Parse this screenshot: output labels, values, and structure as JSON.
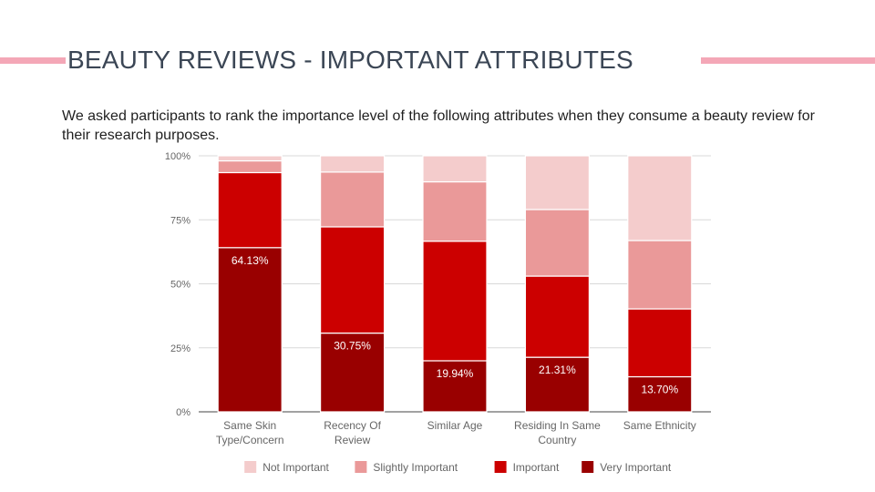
{
  "slide": {
    "title": "BEAUTY REVIEWS - IMPORTANT ATTRIBUTES",
    "subtitle": "We asked participants to rank the importance level of the following attributes when they consume a beauty review for their research purposes."
  },
  "chart_data": {
    "type": "bar",
    "stacked": true,
    "categories": [
      [
        "Same Skin",
        "Type/Concern"
      ],
      [
        "Recency Of",
        "Review"
      ],
      [
        "Similar Age"
      ],
      [
        "Residing In Same",
        "Country"
      ],
      [
        "Same Ethnicity"
      ]
    ],
    "series": [
      {
        "name": "Very Important",
        "color": "#990000",
        "values": [
          64.13,
          30.75,
          19.94,
          21.31,
          13.7
        ]
      },
      {
        "name": "Important",
        "color": "#cc0000",
        "values": [
          29.3,
          41.5,
          46.7,
          31.7,
          26.5
        ]
      },
      {
        "name": "Slightly Important",
        "color": "#ea9999",
        "values": [
          4.6,
          21.4,
          23.2,
          26.0,
          26.7
        ]
      },
      {
        "name": "Not Important",
        "color": "#f4cccc",
        "values": [
          1.97,
          6.35,
          10.16,
          20.99,
          33.1
        ]
      }
    ],
    "data_labels": [
      {
        "category": 0,
        "series": 0,
        "text": "64.13%"
      },
      {
        "category": 1,
        "series": 0,
        "text": "30.75%"
      },
      {
        "category": 2,
        "series": 0,
        "text": "19.94%"
      },
      {
        "category": 3,
        "series": 0,
        "text": "21.31%"
      },
      {
        "category": 4,
        "series": 0,
        "text": "13.70%"
      }
    ],
    "yticks": [
      {
        "value": 0,
        "label": "0%"
      },
      {
        "value": 25,
        "label": "25%"
      },
      {
        "value": 50,
        "label": "50%"
      },
      {
        "value": 75,
        "label": "75%"
      },
      {
        "value": 100,
        "label": "100%"
      }
    ],
    "ylim": [
      0,
      100
    ],
    "grid": true,
    "legend_position": "bottom",
    "legend_order": [
      "Not Important",
      "Slightly Important",
      "Important",
      "Very Important"
    ]
  }
}
